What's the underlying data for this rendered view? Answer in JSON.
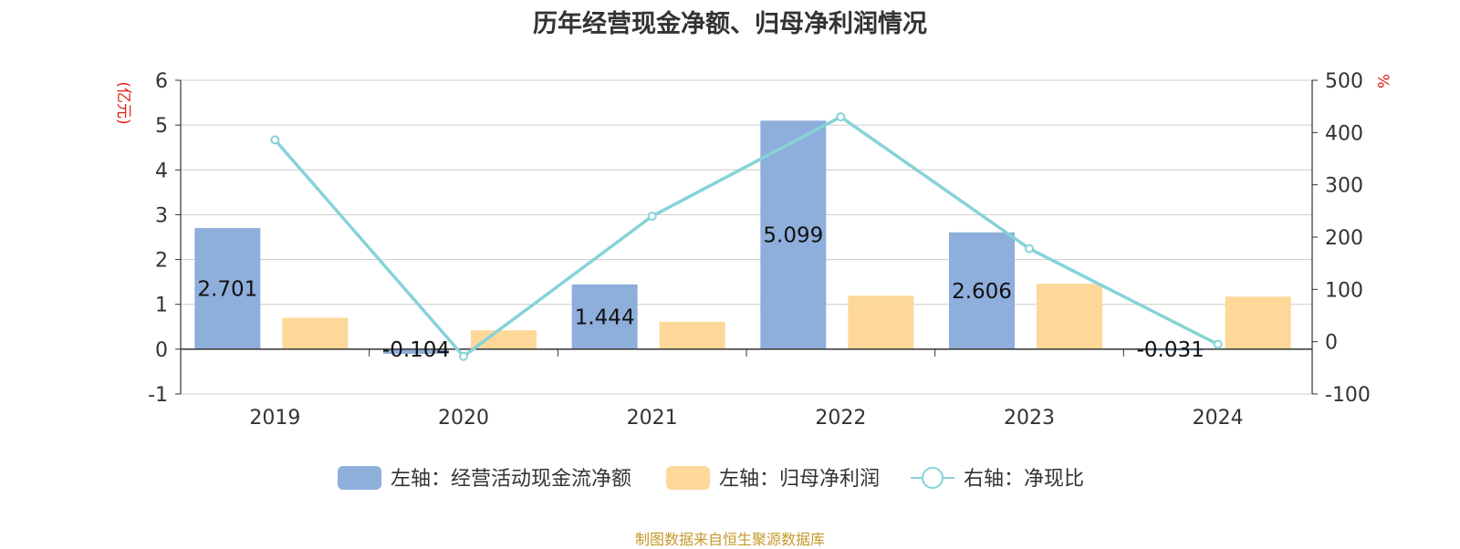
{
  "chart_data": {
    "type": "bar",
    "title": "历年经营现金净额、归母净利润情况",
    "left_unit": "(亿元)",
    "right_unit": "%",
    "categories": [
      "2019",
      "2020",
      "2021",
      "2022",
      "2023",
      "2024"
    ],
    "y_left": {
      "range": [
        -1,
        6
      ],
      "ticks": [
        "-1",
        "0",
        "1",
        "2",
        "3",
        "4",
        "5",
        "6"
      ]
    },
    "y_right": {
      "range": [
        -100,
        500
      ],
      "ticks": [
        "-100",
        "0",
        "100",
        "200",
        "300",
        "400",
        "500"
      ]
    },
    "grid": true,
    "legend_position": "bottom",
    "series": [
      {
        "name": "左轴：经营活动现金流净额",
        "type": "bar",
        "axis": "left",
        "color": "#8eaedb",
        "values": [
          2.701,
          -0.104,
          1.444,
          5.099,
          2.606,
          -0.031
        ],
        "labels": [
          "2.701",
          "-0.104",
          "1.444",
          "5.099",
          "2.606",
          "-0.031"
        ]
      },
      {
        "name": "左轴：归母净利润",
        "type": "bar",
        "axis": "left",
        "color": "#fdd898",
        "values": [
          0.7,
          0.42,
          0.61,
          1.19,
          1.46,
          1.17
        ]
      },
      {
        "name": "右轴：净现比",
        "type": "line",
        "axis": "right",
        "color": "#86d3d8",
        "values": [
          386,
          -28,
          240,
          430,
          178,
          -5
        ]
      }
    ]
  },
  "source": "制图数据来自恒生聚源数据库"
}
